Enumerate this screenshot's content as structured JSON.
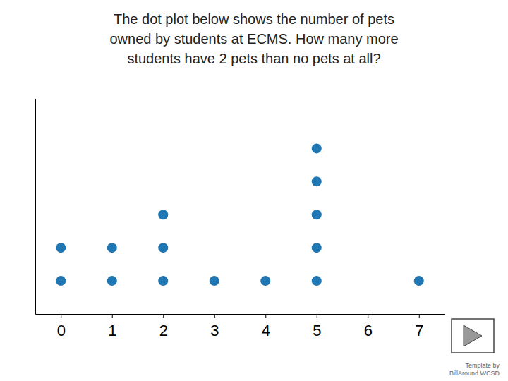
{
  "chart_data": {
    "type": "dot",
    "title": "The dot plot below shows the number of pets\nowned by students at ECMS. How many more\nstudents have 2 pets than no pets at all?",
    "x": [
      0,
      1,
      2,
      3,
      4,
      5,
      6,
      7
    ],
    "values": [
      2,
      2,
      3,
      1,
      1,
      5,
      0,
      1
    ],
    "xlim": [
      -0.5,
      7.5
    ],
    "xticks": [
      0,
      1,
      2,
      3,
      4,
      5,
      6,
      7
    ],
    "ylim": [
      0,
      6.5
    ],
    "tick_labels": "x",
    "grid": false,
    "annotations": [
      "Template by\nBillAround WCSD"
    ]
  }
}
